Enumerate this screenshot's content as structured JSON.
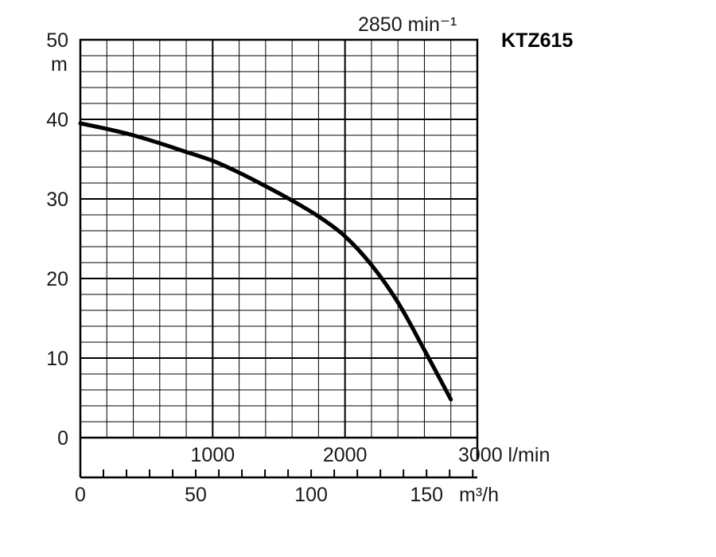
{
  "chart_data": {
    "type": "line",
    "title": "KTZ615",
    "subtitle": "2850 min⁻¹",
    "ylabel": "m",
    "ylim": [
      0,
      50
    ],
    "yticks": [
      "0",
      "10",
      "20",
      "30",
      "40",
      "50"
    ],
    "x_primary": {
      "unit": "l/min",
      "range": [
        0,
        3000
      ],
      "ticks": [
        "1000",
        "2000",
        "3000 l/min"
      ]
    },
    "x_secondary": {
      "unit": "m³/h",
      "range": [
        0,
        172
      ],
      "ticks": [
        "0",
        "50",
        "100",
        "150"
      ]
    },
    "grid": true,
    "series": [
      {
        "x_lpm": [
          0,
          200,
          400,
          600,
          800,
          1000,
          1200,
          1400,
          1600,
          1800,
          2000,
          2200,
          2400,
          2600,
          2800
        ],
        "y_m": [
          39.5,
          38.8,
          38.0,
          37.0,
          35.9,
          34.8,
          33.3,
          31.6,
          29.8,
          27.8,
          25.3,
          21.7,
          17.0,
          11.0,
          4.8
        ]
      }
    ]
  }
}
